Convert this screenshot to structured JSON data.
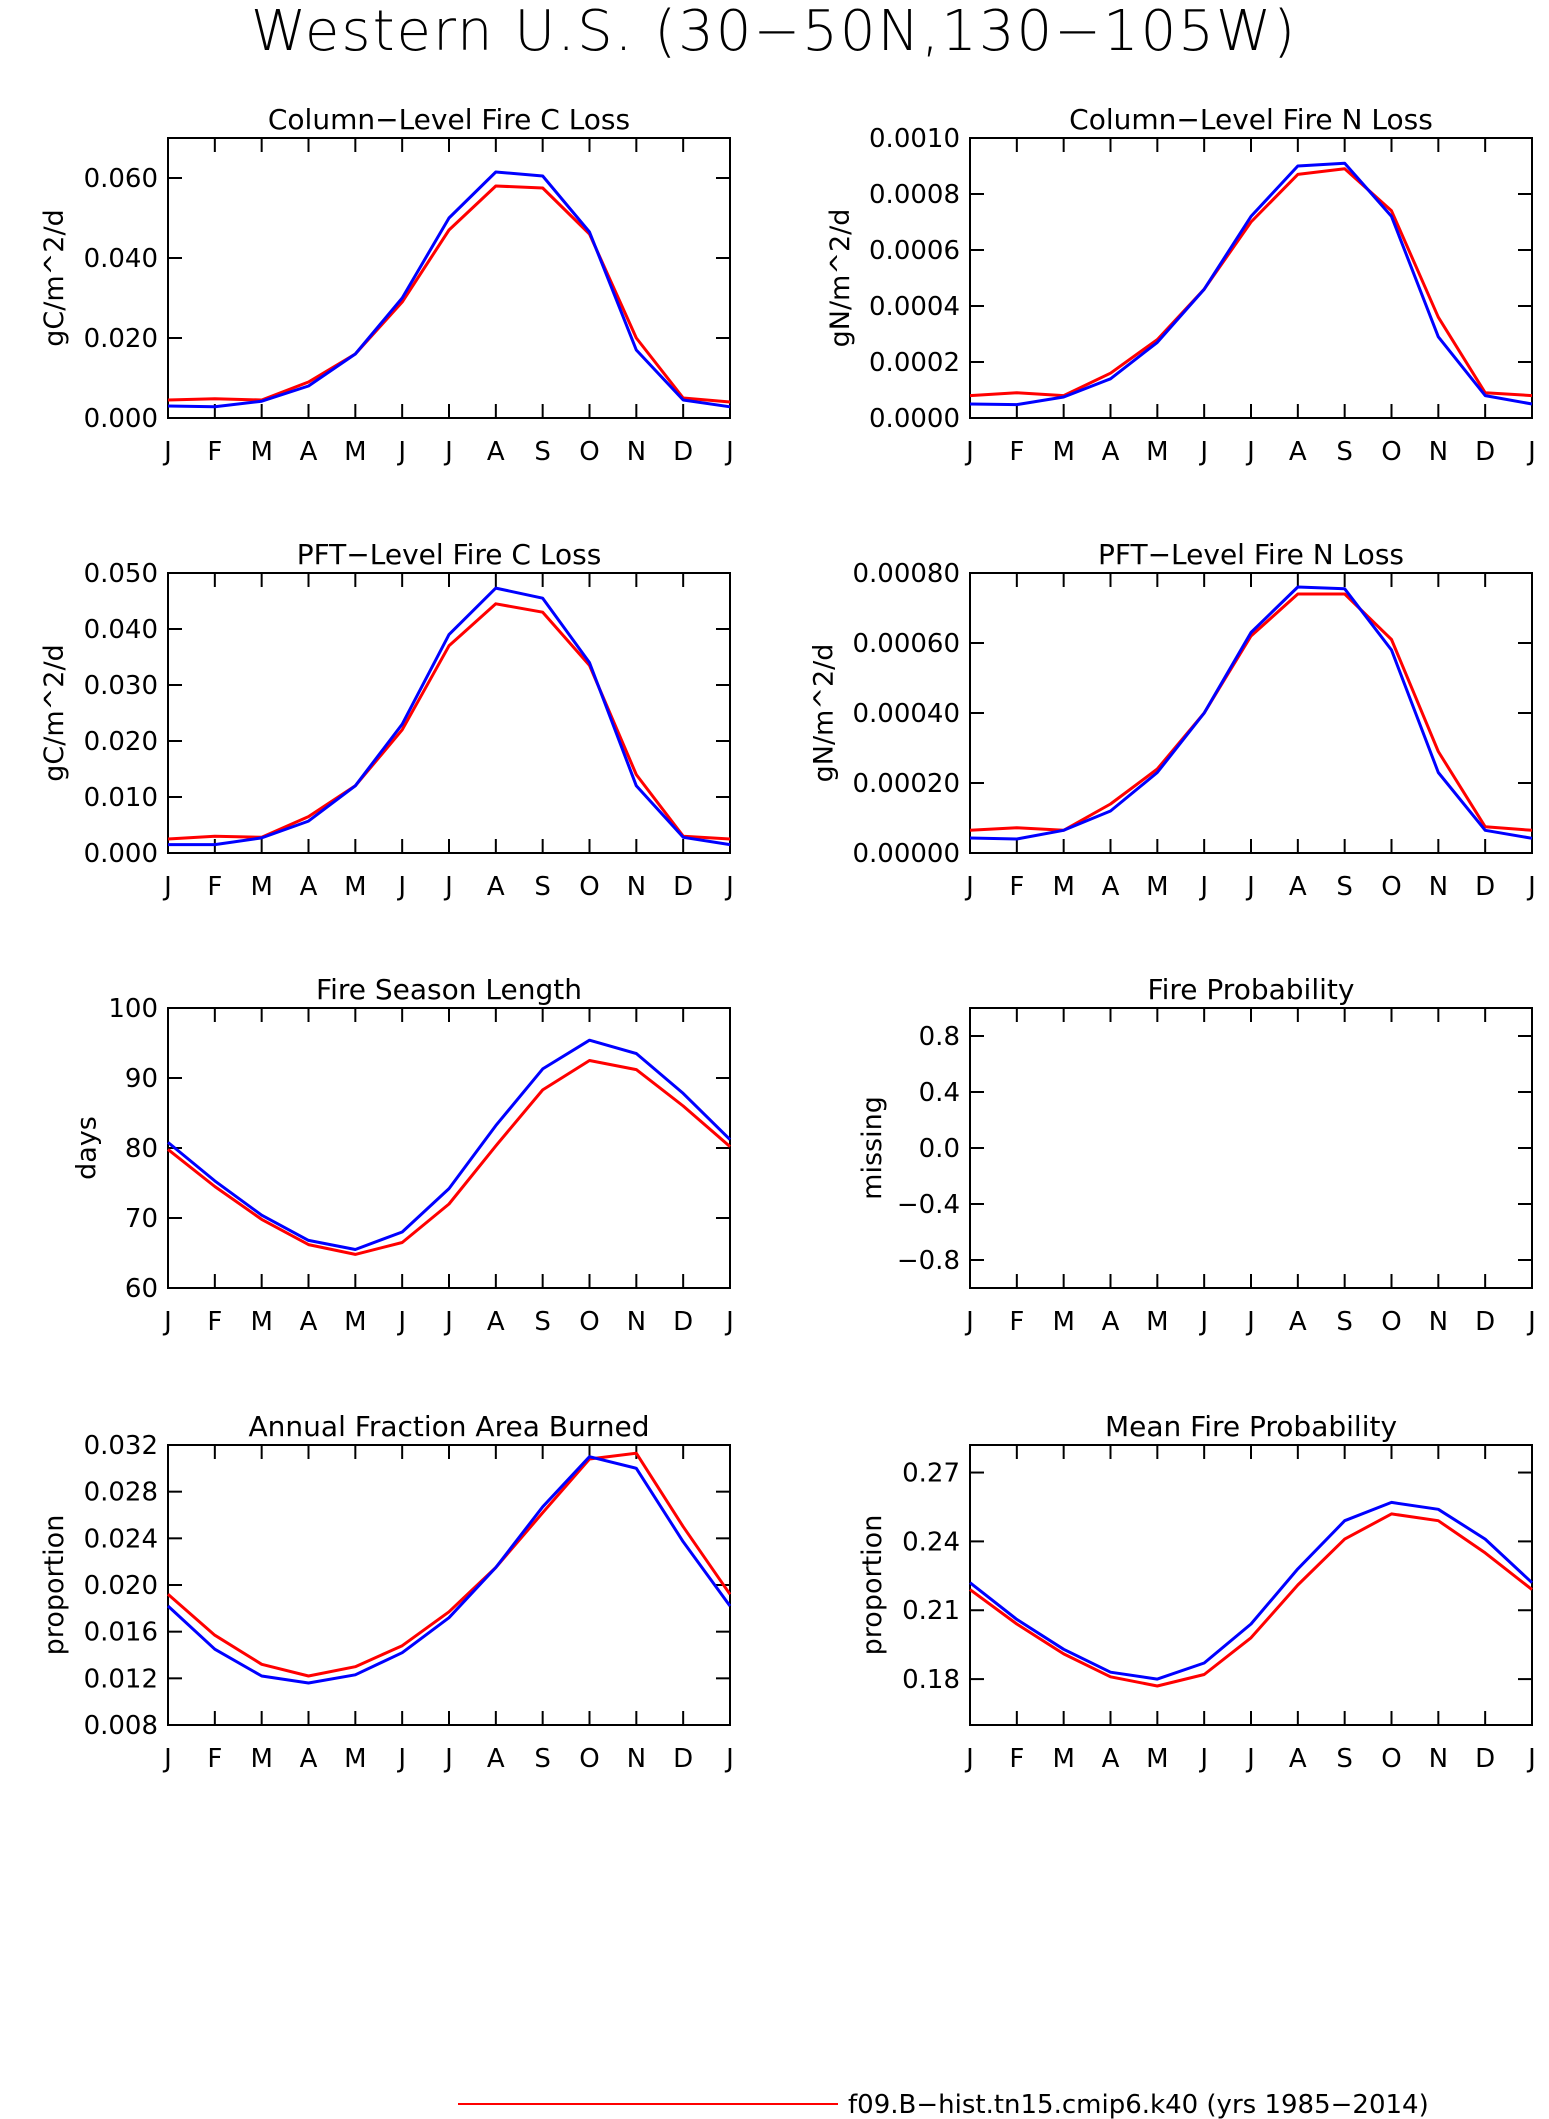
{
  "figure": {
    "title": "Western U.S. (30−50N,130−105W)",
    "legend": [
      {
        "label": "f09.B−hist.tn15.cmip6.k40 (yrs 1985−2014)",
        "color": "#ff0000"
      }
    ]
  },
  "chart_data": [
    {
      "type": "line",
      "title": "Column−Level Fire C Loss",
      "ylabel": "gC/m^2/d",
      "x": [
        "J",
        "F",
        "M",
        "A",
        "M",
        "J",
        "J",
        "A",
        "S",
        "O",
        "N",
        "D",
        "J"
      ],
      "ylim": [
        0,
        0.07
      ],
      "yticks": [
        0.0,
        0.02,
        0.04,
        0.06
      ],
      "yticklabels": [
        "0.000",
        "0.020",
        "0.040",
        "0.060"
      ],
      "series": [
        {
          "color": "#ff0000",
          "values": [
            0.0045,
            0.0048,
            0.0045,
            0.009,
            0.016,
            0.029,
            0.047,
            0.058,
            0.0575,
            0.046,
            0.02,
            0.005,
            0.004
          ]
        },
        {
          "color": "#0000ff",
          "values": [
            0.003,
            0.0028,
            0.0042,
            0.008,
            0.016,
            0.03,
            0.05,
            0.0615,
            0.0605,
            0.0465,
            0.017,
            0.0045,
            0.0028
          ]
        }
      ]
    },
    {
      "type": "line",
      "title": "Column−Level Fire N Loss",
      "ylabel": "gN/m^2/d",
      "x": [
        "J",
        "F",
        "M",
        "A",
        "M",
        "J",
        "J",
        "A",
        "S",
        "O",
        "N",
        "D",
        "J"
      ],
      "ylim": [
        0,
        0.001
      ],
      "yticks": [
        0.0,
        0.0002,
        0.0004,
        0.0006,
        0.0008,
        0.001
      ],
      "yticklabels": [
        "0.0000",
        "0.0002",
        "0.0004",
        "0.0006",
        "0.0008",
        "0.0010"
      ],
      "series": [
        {
          "color": "#ff0000",
          "values": [
            8e-05,
            9e-05,
            8e-05,
            0.00016,
            0.00028,
            0.00046,
            0.0007,
            0.00087,
            0.00089,
            0.00074,
            0.00036,
            9e-05,
            8e-05
          ]
        },
        {
          "color": "#0000ff",
          "values": [
            5e-05,
            4.8e-05,
            7.5e-05,
            0.00014,
            0.00027,
            0.00046,
            0.00072,
            0.0009,
            0.00091,
            0.00072,
            0.00029,
            8e-05,
            5e-05
          ]
        }
      ]
    },
    {
      "type": "line",
      "title": "PFT−Level Fire C Loss",
      "ylabel": "gC/m^2/d",
      "x": [
        "J",
        "F",
        "M",
        "A",
        "M",
        "J",
        "J",
        "A",
        "S",
        "O",
        "N",
        "D",
        "J"
      ],
      "ylim": [
        0,
        0.05
      ],
      "yticks": [
        0.0,
        0.01,
        0.02,
        0.03,
        0.04,
        0.05
      ],
      "yticklabels": [
        "0.000",
        "0.010",
        "0.020",
        "0.030",
        "0.040",
        "0.050"
      ],
      "series": [
        {
          "color": "#ff0000",
          "values": [
            0.0025,
            0.003,
            0.0028,
            0.0065,
            0.012,
            0.022,
            0.037,
            0.0445,
            0.043,
            0.0335,
            0.014,
            0.003,
            0.0025
          ]
        },
        {
          "color": "#0000ff",
          "values": [
            0.0015,
            0.0015,
            0.0027,
            0.0057,
            0.012,
            0.023,
            0.039,
            0.0473,
            0.0455,
            0.034,
            0.012,
            0.0028,
            0.0015
          ]
        }
      ]
    },
    {
      "type": "line",
      "title": "PFT−Level Fire N Loss",
      "ylabel": "gN/m^2/d",
      "x": [
        "J",
        "F",
        "M",
        "A",
        "M",
        "J",
        "J",
        "A",
        "S",
        "O",
        "N",
        "D",
        "J"
      ],
      "ylim": [
        0,
        0.0008
      ],
      "yticks": [
        0.0,
        0.0002,
        0.0004,
        0.0006,
        0.0008
      ],
      "yticklabels": [
        "0.00000",
        "0.00020",
        "0.00040",
        "0.00060",
        "0.00080"
      ],
      "series": [
        {
          "color": "#ff0000",
          "values": [
            6.5e-05,
            7.2e-05,
            6.5e-05,
            0.00014,
            0.00024,
            0.0004,
            0.00062,
            0.00074,
            0.00074,
            0.00061,
            0.00029,
            7.5e-05,
            6.5e-05
          ]
        },
        {
          "color": "#0000ff",
          "values": [
            4.3e-05,
            4e-05,
            6.5e-05,
            0.00012,
            0.00023,
            0.0004,
            0.00063,
            0.00076,
            0.000755,
            0.00058,
            0.00023,
            6.5e-05,
            4.2e-05
          ]
        }
      ]
    },
    {
      "type": "line",
      "title": "Fire Season Length",
      "ylabel": "days",
      "x": [
        "J",
        "F",
        "M",
        "A",
        "M",
        "J",
        "J",
        "A",
        "S",
        "O",
        "N",
        "D",
        "J"
      ],
      "ylim": [
        60,
        100
      ],
      "yticks": [
        60,
        70,
        80,
        90,
        100
      ],
      "yticklabels": [
        "60",
        "70",
        "80",
        "90",
        "100"
      ],
      "series": [
        {
          "color": "#ff0000",
          "values": [
            79.8,
            74.5,
            69.8,
            66.2,
            64.8,
            66.5,
            72,
            80.3,
            88.3,
            92.5,
            91.2,
            86,
            80.2
          ]
        },
        {
          "color": "#0000ff",
          "values": [
            80.8,
            75.3,
            70.4,
            66.8,
            65.5,
            68,
            74.2,
            83.2,
            91.3,
            95.4,
            93.5,
            87.8,
            81.2
          ]
        }
      ]
    },
    {
      "type": "line",
      "title": "Fire Probability",
      "ylabel": "missing",
      "x": [
        "J",
        "F",
        "M",
        "A",
        "M",
        "J",
        "J",
        "A",
        "S",
        "O",
        "N",
        "D",
        "J"
      ],
      "ylim": [
        -1,
        1
      ],
      "yticks": [
        -0.8,
        -0.4,
        0.0,
        0.4,
        0.8
      ],
      "yticklabels": [
        "−0.8",
        "−0.4",
        "0.0",
        "0.4",
        "0.8"
      ],
      "series": []
    },
    {
      "type": "line",
      "title": "Annual Fraction Area Burned",
      "ylabel": "proportion",
      "x": [
        "J",
        "F",
        "M",
        "A",
        "M",
        "J",
        "J",
        "A",
        "S",
        "O",
        "N",
        "D",
        "J"
      ],
      "ylim": [
        0.008,
        0.032
      ],
      "yticks": [
        0.008,
        0.012,
        0.016,
        0.02,
        0.024,
        0.028,
        0.032
      ],
      "yticklabels": [
        "0.008",
        "0.012",
        "0.016",
        "0.020",
        "0.024",
        "0.028",
        "0.032"
      ],
      "series": [
        {
          "color": "#ff0000",
          "values": [
            0.0192,
            0.0157,
            0.0132,
            0.0122,
            0.013,
            0.0148,
            0.0177,
            0.0215,
            0.0262,
            0.0308,
            0.0313,
            0.025,
            0.0192
          ]
        },
        {
          "color": "#0000ff",
          "values": [
            0.0182,
            0.0145,
            0.0122,
            0.0116,
            0.0123,
            0.0142,
            0.0172,
            0.0215,
            0.0267,
            0.031,
            0.03,
            0.0237,
            0.0182
          ]
        }
      ]
    },
    {
      "type": "line",
      "title": "Mean Fire Probability",
      "ylabel": "proportion",
      "x": [
        "J",
        "F",
        "M",
        "A",
        "M",
        "J",
        "J",
        "A",
        "S",
        "O",
        "N",
        "D",
        "J"
      ],
      "ylim": [
        0.16,
        0.282
      ],
      "yticks": [
        0.18,
        0.21,
        0.24,
        0.27
      ],
      "yticklabels": [
        "0.18",
        "0.21",
        "0.24",
        "0.27"
      ],
      "series": [
        {
          "color": "#ff0000",
          "values": [
            0.219,
            0.204,
            0.191,
            0.181,
            0.177,
            0.182,
            0.198,
            0.221,
            0.241,
            0.252,
            0.249,
            0.235,
            0.219
          ]
        },
        {
          "color": "#0000ff",
          "values": [
            0.222,
            0.206,
            0.193,
            0.183,
            0.18,
            0.187,
            0.204,
            0.228,
            0.249,
            0.257,
            0.254,
            0.241,
            0.222
          ]
        }
      ]
    }
  ]
}
